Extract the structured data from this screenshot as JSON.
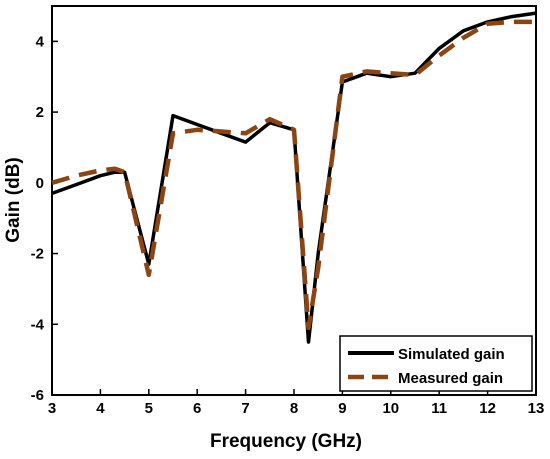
{
  "chart_data": {
    "type": "line",
    "xlabel": "Frequency (GHz)",
    "ylabel": "Gain (dB)",
    "xlim": [
      3,
      13
    ],
    "ylim": [
      -6,
      5
    ],
    "x_ticks": [
      "3",
      "4",
      "5",
      "6",
      "7",
      "8",
      "9",
      "10",
      "11",
      "12",
      "13"
    ],
    "y_ticks": [
      "-6",
      "-4",
      "-2",
      "0",
      "2",
      "4"
    ],
    "grid": false,
    "legend_position": "bottom-right",
    "series": [
      {
        "name": "Simulated gain",
        "color": "#000000",
        "style": "solid",
        "x": [
          3,
          3.5,
          4,
          4.3,
          4.5,
          5,
          5.5,
          6,
          6.5,
          7,
          7.5,
          8,
          8.3,
          8.5,
          9,
          9.5,
          10,
          10.5,
          11,
          11.5,
          12,
          12.5,
          13
        ],
        "y": [
          -0.3,
          -0.05,
          0.2,
          0.3,
          0.3,
          -2.3,
          1.9,
          1.65,
          1.4,
          1.15,
          1.7,
          1.5,
          -4.5,
          -2.0,
          2.85,
          3.1,
          3.0,
          3.1,
          3.8,
          4.3,
          4.55,
          4.7,
          4.8
        ]
      },
      {
        "name": "Measured gain",
        "color": "#8B4513",
        "style": "dashed",
        "x": [
          3,
          3.5,
          4,
          4.3,
          4.5,
          5,
          5.5,
          6,
          6.5,
          7,
          7.5,
          8,
          8.3,
          8.5,
          9,
          9.5,
          10,
          10.5,
          11,
          11.5,
          12,
          12.5,
          13
        ],
        "y": [
          0.0,
          0.2,
          0.35,
          0.4,
          0.3,
          -2.6,
          1.4,
          1.5,
          1.45,
          1.4,
          1.8,
          1.5,
          -4.1,
          -2.4,
          3.0,
          3.15,
          3.1,
          3.05,
          3.6,
          4.1,
          4.5,
          4.55,
          4.55
        ]
      }
    ]
  }
}
